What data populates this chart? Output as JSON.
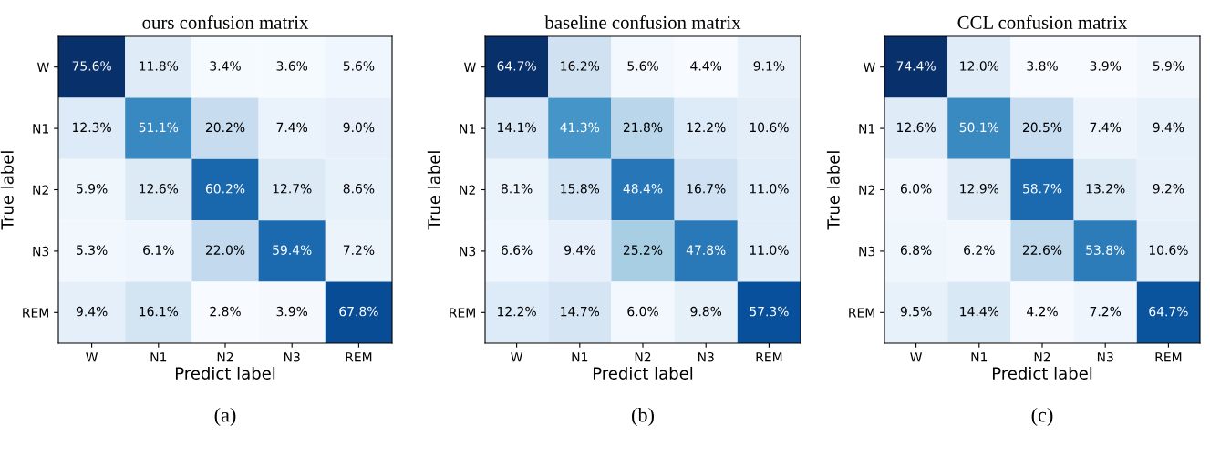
{
  "chart_data": [
    {
      "type": "heatmap",
      "title": "ours confusion matrix",
      "xlabel": "Predict label",
      "ylabel": "True label",
      "categories": [
        "W",
        "N1",
        "N2",
        "N3",
        "REM"
      ],
      "y_categories": [
        "W",
        "N1",
        "N2",
        "N3",
        "REM"
      ],
      "cells": [
        [
          75.6,
          11.8,
          3.4,
          3.6,
          5.6
        ],
        [
          12.3,
          51.1,
          20.2,
          7.4,
          9.0
        ],
        [
          5.9,
          12.6,
          60.2,
          12.7,
          8.6
        ],
        [
          5.3,
          6.1,
          22.0,
          59.4,
          7.2
        ],
        [
          9.4,
          16.1,
          2.8,
          3.9,
          67.8
        ]
      ],
      "cell_labels": [
        [
          "75.6%",
          "11.8%",
          "3.4%",
          "3.6%",
          "5.6%"
        ],
        [
          "12.3%",
          "51.1%",
          "20.2%",
          "7.4%",
          "9.0%"
        ],
        [
          "5.9%",
          "12.6%",
          "60.2%",
          "12.7%",
          "8.6%"
        ],
        [
          "5.3%",
          "6.1%",
          "22.0%",
          "59.4%",
          "7.2%"
        ],
        [
          "9.4%",
          "16.1%",
          "2.8%",
          "3.9%",
          "67.8%"
        ]
      ],
      "annotations": [
        "(a)"
      ]
    },
    {
      "type": "heatmap",
      "title": "baseline confusion matrix",
      "xlabel": "Predict label",
      "ylabel": "True label",
      "categories": [
        "W",
        "N1",
        "N2",
        "N3",
        "REM"
      ],
      "y_categories": [
        "W",
        "N1",
        "N2",
        "N3",
        "REM"
      ],
      "cells": [
        [
          64.7,
          16.2,
          5.6,
          4.4,
          9.1
        ],
        [
          14.1,
          41.3,
          21.8,
          12.2,
          10.6
        ],
        [
          8.1,
          15.8,
          48.4,
          16.7,
          11.0
        ],
        [
          6.6,
          9.4,
          25.2,
          47.8,
          11.0
        ],
        [
          12.2,
          14.7,
          6.0,
          9.8,
          57.3
        ]
      ],
      "cell_labels": [
        [
          "64.7%",
          "16.2%",
          "5.6%",
          "4.4%",
          "9.1%"
        ],
        [
          "14.1%",
          "41.3%",
          "21.8%",
          "12.2%",
          "10.6%"
        ],
        [
          "8.1%",
          "15.8%",
          "48.4%",
          "16.7%",
          "11.0%"
        ],
        [
          "6.6%",
          "9.4%",
          "25.2%",
          "47.8%",
          "11.0%"
        ],
        [
          "12.2%",
          "14.7%",
          "6.0%",
          "9.8%",
          "57.3%"
        ]
      ],
      "annotations": [
        "(b)"
      ]
    },
    {
      "type": "heatmap",
      "title": "CCL confusion matrix",
      "xlabel": "Predict label",
      "ylabel": "True label",
      "categories": [
        "W",
        "N1",
        "N2",
        "N3",
        "REM"
      ],
      "y_categories": [
        "W",
        "N1",
        "N2",
        "N3",
        "REM"
      ],
      "cells": [
        [
          74.4,
          12.0,
          3.8,
          3.9,
          5.9
        ],
        [
          12.6,
          50.1,
          20.5,
          7.4,
          9.4
        ],
        [
          6.0,
          12.9,
          58.7,
          13.2,
          9.2
        ],
        [
          6.8,
          6.2,
          22.6,
          53.8,
          10.6
        ],
        [
          9.5,
          14.4,
          4.2,
          7.2,
          64.7
        ]
      ],
      "cell_labels": [
        [
          "74.4%",
          "12.0%",
          "3.8%",
          "3.9%",
          "5.9%"
        ],
        [
          "12.6%",
          "50.1%",
          "20.5%",
          "7.4%",
          "9.4%"
        ],
        [
          "6.0%",
          "12.9%",
          "58.7%",
          "13.2%",
          "9.2%"
        ],
        [
          "6.8%",
          "6.2%",
          "22.6%",
          "53.8%",
          "10.6%"
        ],
        [
          "9.5%",
          "14.4%",
          "4.2%",
          "7.2%",
          "64.7%"
        ]
      ],
      "annotations": [
        "(c)"
      ]
    }
  ]
}
